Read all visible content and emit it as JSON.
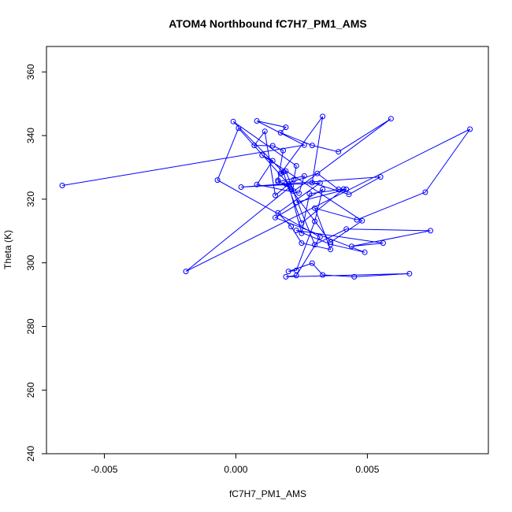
{
  "chart_data": {
    "type": "scatter",
    "title": "ATOM4 Northbound fC7H7_PM1_AMS",
    "xlabel": "fC7H7_PM1_AMS",
    "ylabel": "Theta (K)",
    "xlim": [
      -0.0072,
      0.0096
    ],
    "ylim": [
      240,
      368
    ],
    "x_ticks": [
      -0.005,
      0.0,
      0.005
    ],
    "x_tick_labels": [
      "-0.005",
      "0.000",
      "0.005"
    ],
    "y_ticks": [
      240,
      260,
      280,
      300,
      320,
      340,
      360
    ],
    "y_tick_labels": [
      "240",
      "260",
      "280",
      "300",
      "320",
      "340",
      "360"
    ],
    "grid": false,
    "legend": "none",
    "line_color": "#0000ff",
    "marker": "open-circle",
    "connected": true,
    "series": [
      {
        "x": [
          -0.0066,
          0.0026,
          0.0008,
          0.0019,
          0.0017,
          0.0029,
          0.0039,
          0.0059,
          0.0022,
          0.0019,
          0.0017,
          0.0033,
          0.0029,
          0.0043,
          0.0055,
          0.0002,
          0.0032,
          0.0016,
          0.0021,
          0.0025,
          0.0036,
          0.003,
          0.0046,
          0.0072,
          0.0089,
          -0.0019,
          0.0021,
          0.003,
          0.0042,
          0.0074,
          0.0044,
          0.0056,
          0.0023,
          0.0036,
          0.0049,
          0.0015,
          0.0033,
          0.003,
          0.0023,
          0.002,
          0.0029,
          0.0033,
          0.0045,
          0.0066,
          0.0019,
          0.0023,
          0.0032,
          -0.0007,
          0.0001,
          0.002,
          0.0025,
          0.0028,
          0.0041,
          0.0025,
          0.0018,
          -0.0001,
          0.0023,
          0.0022,
          0.0015,
          0.0011,
          0.0007,
          0.0014,
          0.0018,
          0.0016,
          0.0021,
          0.0036,
          0.0048,
          0.001,
          0.0014,
          0.0008,
          0.0024,
          0.0026,
          0.0016,
          0.0019,
          0.0031,
          0.0039,
          0.0042,
          0.0023
        ],
        "y": [
          324.3,
          337.0,
          344.6,
          342.6,
          340.9,
          336.9,
          334.9,
          345.3,
          322.5,
          328.8,
          328.0,
          346.0,
          325.2,
          321.5,
          327.0,
          323.8,
          325.1,
          315.7,
          311.4,
          306.2,
          304.2,
          317.2,
          313.5,
          322.2,
          342.0,
          297.3,
          324.1,
          305.7,
          310.6,
          310.1,
          305.2,
          306.2,
          310.2,
          305.8,
          303.3,
          314.2,
          323.1,
          313.0,
          297.6,
          297.3,
          299.9,
          296.2,
          295.6,
          296.6,
          295.6,
          296.0,
          308.1,
          326.0,
          342.3,
          324.8,
          309.3,
          321.7,
          323.2,
          312.5,
          328.5,
          344.4,
          330.5,
          326.1,
          321.2,
          341.3,
          336.9,
          336.8,
          335.3,
          325.9,
          323.1,
          306.5,
          313.2,
          333.8,
          332.1,
          324.6,
          321.9,
          327.3,
          325.5,
          324.8,
          328.1,
          323.1,
          323.1,
          319.0
        ]
      }
    ]
  }
}
